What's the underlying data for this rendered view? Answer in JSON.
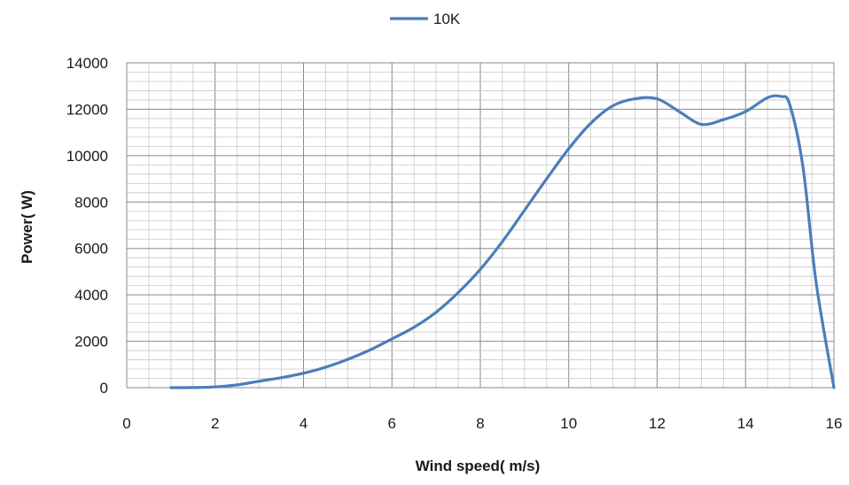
{
  "chart_data": {
    "type": "line",
    "xlabel": "Wind speed( m/s)",
    "ylabel": "Power( W)",
    "xlim": [
      0,
      16
    ],
    "ylim": [
      0,
      14000
    ],
    "xticks": [
      "0",
      "2",
      "4",
      "6",
      "8",
      "10",
      "12",
      "14",
      "16"
    ],
    "yticks": [
      "0",
      "2000",
      "4000",
      "6000",
      "8000",
      "10000",
      "12000",
      "14000"
    ],
    "grid": true,
    "legend_position": "top-center",
    "series": [
      {
        "name": "10K",
        "color": "#4a7ebb",
        "x": [
          1,
          1.5,
          2,
          2.5,
          3,
          3.5,
          4,
          4.5,
          5,
          5.5,
          6,
          6.5,
          7,
          7.5,
          8,
          8.5,
          9,
          9.5,
          10,
          10.5,
          11,
          11.5,
          12,
          12.5,
          13,
          13.5,
          14,
          14.5,
          14.8,
          15,
          15.3,
          15.6,
          16
        ],
        "y": [
          0,
          5,
          30,
          120,
          280,
          430,
          620,
          880,
          1220,
          1620,
          2100,
          2600,
          3250,
          4100,
          5100,
          6300,
          7650,
          9000,
          10300,
          11400,
          12150,
          12450,
          12450,
          11900,
          11350,
          11550,
          11900,
          12500,
          12550,
          12200,
          9500,
          4500,
          0
        ]
      }
    ]
  }
}
